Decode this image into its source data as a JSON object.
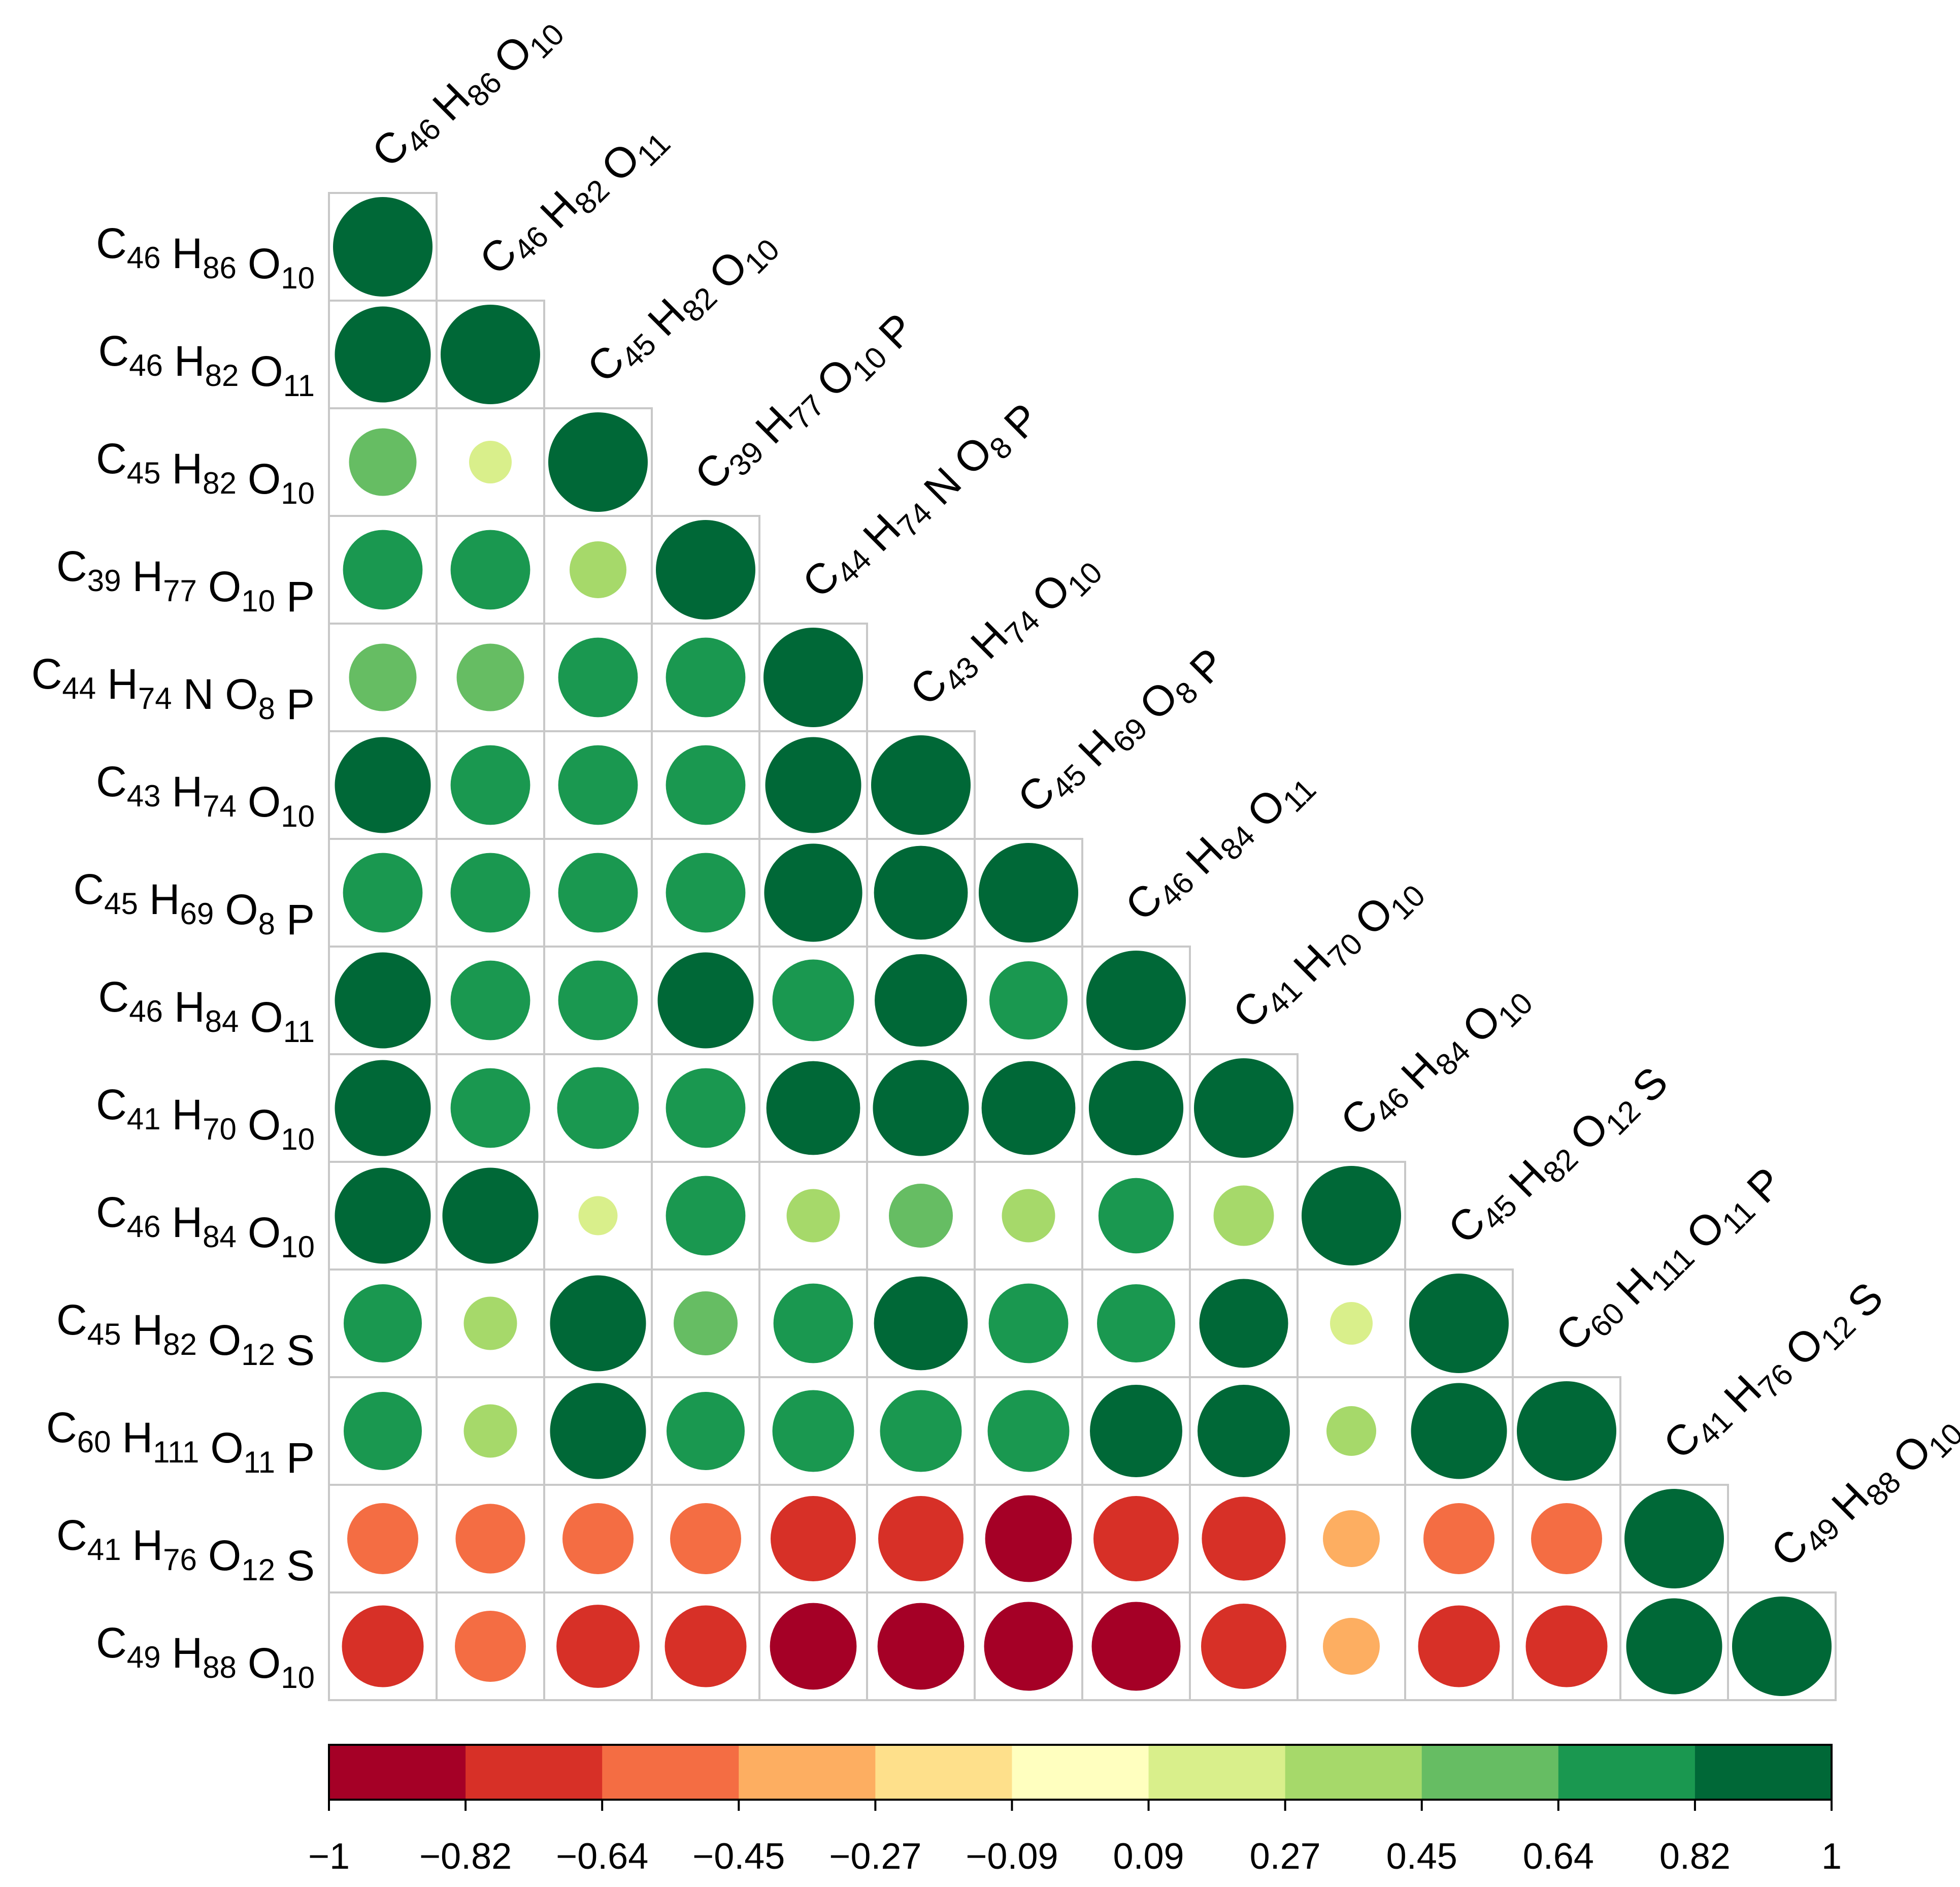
{
  "chart_data": {
    "type": "heatmap",
    "style": "lower-triangle correlation matrix, circle size and color encode correlation",
    "title": "",
    "variables": [
      "C46 H86 O10",
      "C46 H82 O11",
      "C45 H82 O10",
      "C39 H77 O10 P",
      "C44 H74 N O8 P",
      "C43 H74 O10",
      "C45 H69 O8 P",
      "C46 H84 O11",
      "C41 H70 O10",
      "C46 H84 O10",
      "C45 H82 O12 S",
      "C60 H111 O11 P",
      "C41 H76 O12 S",
      "C49 H88 O10"
    ],
    "variable_parts": [
      [
        [
          "C",
          "46"
        ],
        [
          "H",
          "86"
        ],
        [
          "O",
          "10"
        ]
      ],
      [
        [
          "C",
          "46"
        ],
        [
          "H",
          "82"
        ],
        [
          "O",
          "11"
        ]
      ],
      [
        [
          "C",
          "45"
        ],
        [
          "H",
          "82"
        ],
        [
          "O",
          "10"
        ]
      ],
      [
        [
          "C",
          "39"
        ],
        [
          "H",
          "77"
        ],
        [
          "O",
          "10"
        ],
        [
          "P",
          ""
        ]
      ],
      [
        [
          "C",
          "44"
        ],
        [
          "H",
          "74"
        ],
        [
          "N",
          ""
        ],
        [
          "O",
          "8"
        ],
        [
          "P",
          ""
        ]
      ],
      [
        [
          "C",
          "43"
        ],
        [
          "H",
          "74"
        ],
        [
          "O",
          "10"
        ]
      ],
      [
        [
          "C",
          "45"
        ],
        [
          "H",
          "69"
        ],
        [
          "O",
          "8"
        ],
        [
          "P",
          ""
        ]
      ],
      [
        [
          "C",
          "46"
        ],
        [
          "H",
          "84"
        ],
        [
          "O",
          "11"
        ]
      ],
      [
        [
          "C",
          "41"
        ],
        [
          "H",
          "70"
        ],
        [
          "O",
          "10"
        ]
      ],
      [
        [
          "C",
          "46"
        ],
        [
          "H",
          "84"
        ],
        [
          "O",
          "10"
        ]
      ],
      [
        [
          "C",
          "45"
        ],
        [
          "H",
          "82"
        ],
        [
          "O",
          "12"
        ],
        [
          "S",
          ""
        ]
      ],
      [
        [
          "C",
          "60"
        ],
        [
          "H",
          "111"
        ],
        [
          "O",
          "11"
        ],
        [
          "P",
          ""
        ]
      ],
      [
        [
          "C",
          "41"
        ],
        [
          "H",
          "76"
        ],
        [
          "O",
          "12"
        ],
        [
          "S",
          ""
        ]
      ],
      [
        [
          "C",
          "49"
        ],
        [
          "H",
          "88"
        ],
        [
          "O",
          "10"
        ]
      ]
    ],
    "correlation_matrix": [
      [
        1.0
      ],
      [
        0.95,
        1.0
      ],
      [
        0.55,
        0.2,
        1.0
      ],
      [
        0.72,
        0.72,
        0.4,
        1.0
      ],
      [
        0.55,
        0.55,
        0.72,
        0.72,
        1.0
      ],
      [
        0.95,
        0.72,
        0.72,
        0.72,
        0.95,
        1.0
      ],
      [
        0.72,
        0.72,
        0.72,
        0.72,
        0.98,
        0.92,
        1.0
      ],
      [
        0.95,
        0.72,
        0.72,
        0.95,
        0.75,
        0.9,
        0.7,
        1.0
      ],
      [
        0.95,
        0.72,
        0.75,
        0.72,
        0.92,
        0.95,
        0.92,
        0.93,
        1.0
      ],
      [
        0.95,
        0.95,
        0.15,
        0.72,
        0.35,
        0.5,
        0.35,
        0.66,
        0.45,
        1.0
      ],
      [
        0.7,
        0.35,
        0.95,
        0.5,
        0.72,
        0.92,
        0.72,
        0.7,
        0.85,
        0.2,
        1.0
      ],
      [
        0.7,
        0.35,
        0.95,
        0.7,
        0.75,
        0.75,
        0.75,
        0.9,
        0.9,
        0.3,
        0.95,
        1.0
      ],
      [
        -0.6,
        -0.58,
        -0.6,
        -0.6,
        -0.8,
        -0.8,
        -0.82,
        -0.8,
        -0.78,
        -0.4,
        -0.6,
        -0.6,
        1.0
      ],
      [
        -0.75,
        -0.6,
        -0.77,
        -0.75,
        -0.82,
        -0.82,
        -0.85,
        -0.85,
        -0.8,
        -0.4,
        -0.75,
        -0.75,
        0.95,
        1.0
      ]
    ],
    "colorbar": {
      "range": [
        -1,
        1
      ],
      "ticks": [
        "−1",
        "−0.82",
        "−0.64",
        "−0.45",
        "−0.27",
        "−0.09",
        "0.09",
        "0.27",
        "0.45",
        "0.64",
        "0.82",
        "1"
      ],
      "colors": [
        "#a50026",
        "#d73027",
        "#f46d43",
        "#fdae61",
        "#fee08b",
        "#ffffbf",
        "#d9ef8b",
        "#a6d96a",
        "#66bd63",
        "#1a9850",
        "#006837"
      ]
    }
  }
}
